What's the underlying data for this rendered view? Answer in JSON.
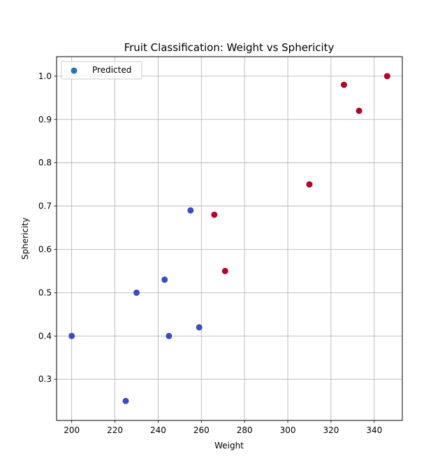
{
  "chart_data": {
    "type": "scatter",
    "title": "Fruit Classification: Weight vs Sphericity",
    "xlabel": "Weight",
    "ylabel": "Sphericity",
    "xlim": [
      193,
      353
    ],
    "ylim": [
      0.205,
      1.045
    ],
    "xticks": [
      200,
      220,
      240,
      260,
      280,
      300,
      320,
      340
    ],
    "yticks": [
      0.3,
      0.4,
      0.5,
      0.6,
      0.7,
      0.8,
      0.9,
      1.0
    ],
    "grid": true,
    "legend": {
      "entries": [
        "Predicted"
      ],
      "placement": "upper-left",
      "marker_color": "#1f77b4"
    },
    "class_colors": {
      "0": "#3b4cc0",
      "1": "#b40426"
    },
    "points": [
      {
        "x": 200,
        "y": 0.4,
        "class": 0
      },
      {
        "x": 225,
        "y": 0.25,
        "class": 0
      },
      {
        "x": 230,
        "y": 0.5,
        "class": 0
      },
      {
        "x": 243,
        "y": 0.53,
        "class": 0
      },
      {
        "x": 245,
        "y": 0.4,
        "class": 0
      },
      {
        "x": 255,
        "y": 0.69,
        "class": 0
      },
      {
        "x": 259,
        "y": 0.42,
        "class": 0
      },
      {
        "x": 266,
        "y": 0.68,
        "class": 1
      },
      {
        "x": 271,
        "y": 0.55,
        "class": 1
      },
      {
        "x": 310,
        "y": 0.75,
        "class": 1
      },
      {
        "x": 326,
        "y": 0.98,
        "class": 1
      },
      {
        "x": 333,
        "y": 0.92,
        "class": 1
      },
      {
        "x": 346,
        "y": 1.0,
        "class": 1
      }
    ]
  }
}
